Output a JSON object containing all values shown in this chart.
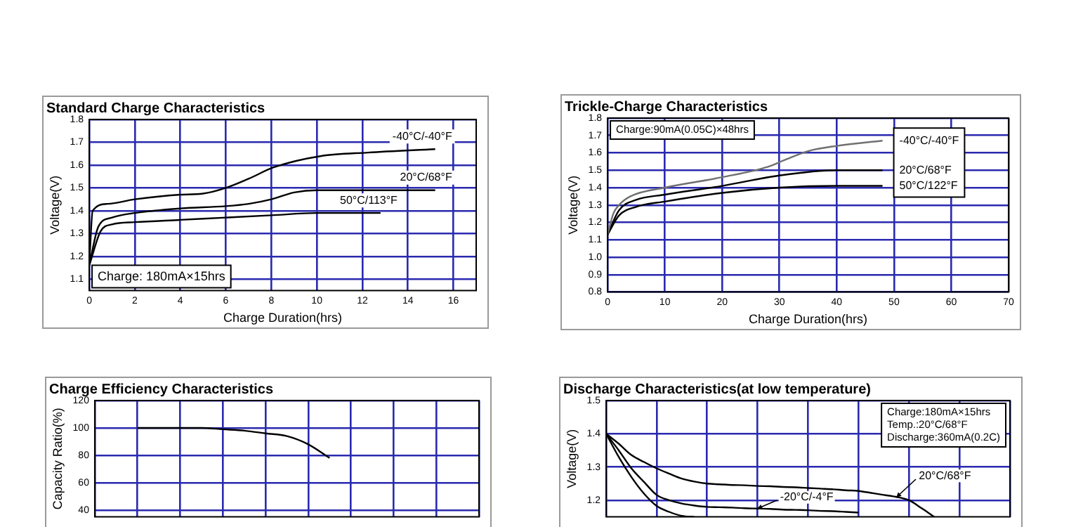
{
  "chart_data": [
    {
      "type": "line",
      "title": "Standard Charge Characteristics",
      "xlabel": "Charge Duration(hrs)",
      "ylabel": "Voltage(V)",
      "xlim": [
        0,
        17
      ],
      "xticks": [
        0,
        2,
        4,
        6,
        8,
        10,
        12,
        14,
        16
      ],
      "ylim": [
        1.05,
        1.8
      ],
      "yticks": [
        1.1,
        1.2,
        1.3,
        1.4,
        1.5,
        1.6,
        1.7,
        1.8
      ],
      "grid": true,
      "annotations": [
        "Charge: 180mA×15hrs"
      ],
      "series": [
        {
          "name": "-40°C/-40°F",
          "color": "#000000",
          "x": [
            0,
            0.15,
            0.8,
            2,
            3.9,
            5,
            6,
            7,
            8.1,
            10.2,
            12.25,
            15.2
          ],
          "values": [
            1.16,
            1.4,
            1.43,
            1.45,
            1.47,
            1.475,
            1.5,
            1.54,
            1.59,
            1.64,
            1.655,
            1.67
          ]
        },
        {
          "name": "20°C/68°F",
          "color": "#000000",
          "x": [
            0,
            0.4,
            1,
            2,
            4,
            6,
            7,
            8,
            9,
            10,
            12,
            15.2
          ],
          "values": [
            1.16,
            1.33,
            1.37,
            1.39,
            1.41,
            1.42,
            1.43,
            1.45,
            1.48,
            1.49,
            1.49,
            1.49
          ]
        },
        {
          "name": "50°C/113°F",
          "color": "#000000",
          "x": [
            0,
            0.5,
            1,
            2,
            4,
            6,
            8,
            10,
            12.8
          ],
          "values": [
            1.16,
            1.31,
            1.34,
            1.35,
            1.36,
            1.37,
            1.38,
            1.39,
            1.39
          ]
        }
      ]
    },
    {
      "type": "line",
      "title": "Trickle-Charge Characteristics",
      "xlabel": "Charge Duration(hrs)",
      "ylabel": "Voltage(V)",
      "xlim": [
        0,
        70
      ],
      "xticks": [
        0,
        10,
        20,
        30,
        40,
        50,
        60,
        70
      ],
      "ylim": [
        0.8,
        1.8
      ],
      "yticks": [
        0.8,
        0.9,
        {
          "value": 1,
          "label": "1.0"
        },
        1.1,
        1.2,
        1.3,
        1.4,
        1.5,
        1.6,
        1.7,
        1.8
      ],
      "grid": true,
      "annotations": [
        "Charge:90mA(0.05C)×48hrs"
      ],
      "series": [
        {
          "name": "-40°C/-40°F",
          "color": "#707070",
          "x": [
            0,
            1,
            2,
            4,
            10,
            20,
            28,
            31,
            35,
            40,
            48
          ],
          "values": [
            1.13,
            1.25,
            1.3,
            1.35,
            1.4,
            1.46,
            1.52,
            1.56,
            1.61,
            1.64,
            1.67
          ]
        },
        {
          "name": "20°C/68°F",
          "color": "#000000",
          "x": [
            0,
            2,
            5,
            10,
            20,
            30,
            40,
            48
          ],
          "values": [
            1.13,
            1.27,
            1.33,
            1.36,
            1.41,
            1.47,
            1.5,
            1.5
          ]
        },
        {
          "name": "50°C/122°F",
          "color": "#000000",
          "x": [
            0,
            2,
            5,
            10,
            20,
            30,
            40,
            48
          ],
          "values": [
            1.13,
            1.24,
            1.29,
            1.32,
            1.37,
            1.4,
            1.41,
            1.41
          ]
        }
      ]
    },
    {
      "type": "line",
      "title": "Charge Efficiency Characteristics",
      "ylabel": "Capacity Ratio(%)",
      "categories": [
        null,
        null,
        null,
        null,
        null,
        null,
        null,
        null,
        null,
        null,
        null,
        null,
        null,
        null,
        null,
        null,
        null,
        null,
        null
      ],
      "ylim": [
        35,
        120
      ],
      "yticks": [
        40,
        60,
        80,
        100,
        120
      ],
      "grid": true,
      "tick_labels": "y",
      "series": [
        {
          "color": "#000000",
          "values": [
            null,
            null,
            100,
            100,
            100,
            100,
            99,
            98,
            96,
            94,
            88,
            78,
            null,
            null,
            null,
            null,
            null,
            null,
            null
          ]
        }
      ]
    },
    {
      "type": "line",
      "title": "Discharge Characteristics(at low temperature)",
      "ylabel": "Voltage(V)",
      "categories": [
        null,
        null,
        null,
        null,
        null,
        null,
        null,
        null,
        null,
        null,
        null,
        null,
        null,
        null,
        null,
        null,
        null,
        null,
        null,
        null,
        null,
        null,
        null,
        null,
        null,
        null,
        null,
        null,
        null,
        null,
        null,
        null,
        null
      ],
      "ylim": [
        1.15,
        1.5
      ],
      "yticks": [
        1.2,
        1.3,
        1.4,
        1.5
      ],
      "grid": true,
      "tick_labels": "y",
      "annotations": [
        "Charge:180mA×15hrs",
        "Temp.:20°C/68°F",
        "Discharge:360mA(0.2C)"
      ],
      "series": [
        {
          "name": "20°C/68°F",
          "color": "#000000",
          "values": [
            1.4,
            1.37,
            1.336,
            1.315,
            1.296,
            1.28,
            1.265,
            1.256,
            1.25,
            1.248,
            1.246,
            1.245,
            1.243,
            1.242,
            1.24,
            1.239,
            1.237,
            1.235,
            1.233,
            1.23,
            1.228,
            1.222,
            1.216,
            1.21,
            1.2,
            1.176,
            1.15,
            null,
            null,
            null,
            null,
            null,
            null
          ]
        },
        {
          "name": "-20°C/-4°F",
          "color": "#000000",
          "values": [
            1.4,
            1.35,
            1.296,
            1.255,
            1.216,
            1.2,
            1.19,
            1.184,
            1.18,
            1.179,
            1.178,
            1.176,
            1.175,
            1.174,
            1.172,
            1.171,
            1.17,
            1.168,
            1.167,
            1.165,
            1.163,
            null,
            null,
            null,
            null,
            null,
            null,
            null,
            null,
            null,
            null,
            null,
            null
          ]
        },
        {
          "color": "#000000",
          "values": [
            1.4,
            1.33,
            1.27,
            1.22,
            1.183,
            1.165,
            1.153,
            1.15,
            null,
            null,
            null,
            null,
            null,
            null,
            null,
            null,
            null,
            null,
            null,
            null,
            null,
            null,
            null,
            null,
            null,
            null,
            null,
            null,
            null,
            null,
            null,
            null,
            null
          ]
        }
      ]
    }
  ]
}
